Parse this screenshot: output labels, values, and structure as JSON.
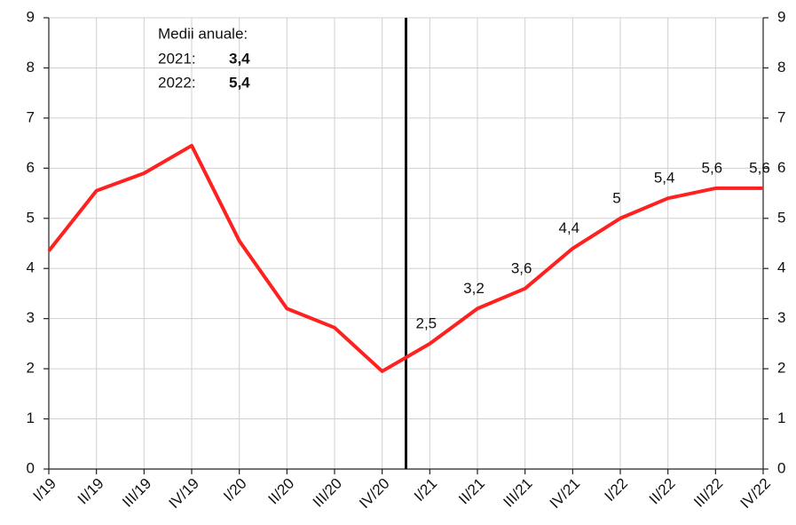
{
  "chart_data": {
    "type": "line",
    "categories": [
      "I/19",
      "II/19",
      "III/19",
      "IV/19",
      "I/20",
      "II/20",
      "III/20",
      "IV/20",
      "I/21",
      "II/21",
      "III/21",
      "IV/21",
      "I/22",
      "II/22",
      "III/22",
      "IV/22"
    ],
    "series": [
      {
        "color": "#ff2020",
        "values": [
          4.35,
          5.55,
          5.9,
          6.45,
          4.55,
          3.2,
          2.82,
          1.95,
          2.5,
          3.2,
          3.6,
          4.4,
          5.0,
          5.4,
          5.6,
          5.6
        ],
        "value_labels": [
          null,
          null,
          null,
          null,
          null,
          null,
          null,
          null,
          "2,5",
          "3,2",
          "3,6",
          "4,4",
          "5",
          "5,4",
          "5,6",
          "5,6"
        ]
      }
    ],
    "ylim": [
      0,
      9
    ],
    "yticks": [
      0,
      1,
      2,
      3,
      4,
      5,
      6,
      7,
      8,
      9
    ],
    "y2lim": [
      0,
      9
    ],
    "y2ticks": [
      0,
      1,
      2,
      3,
      4,
      5,
      6,
      7,
      8,
      9
    ],
    "grid": true,
    "annotation": {
      "title": "Medii anuale:",
      "rows": [
        [
          "2021:",
          "3,4"
        ],
        [
          "2022:",
          "5,4"
        ]
      ]
    }
  }
}
